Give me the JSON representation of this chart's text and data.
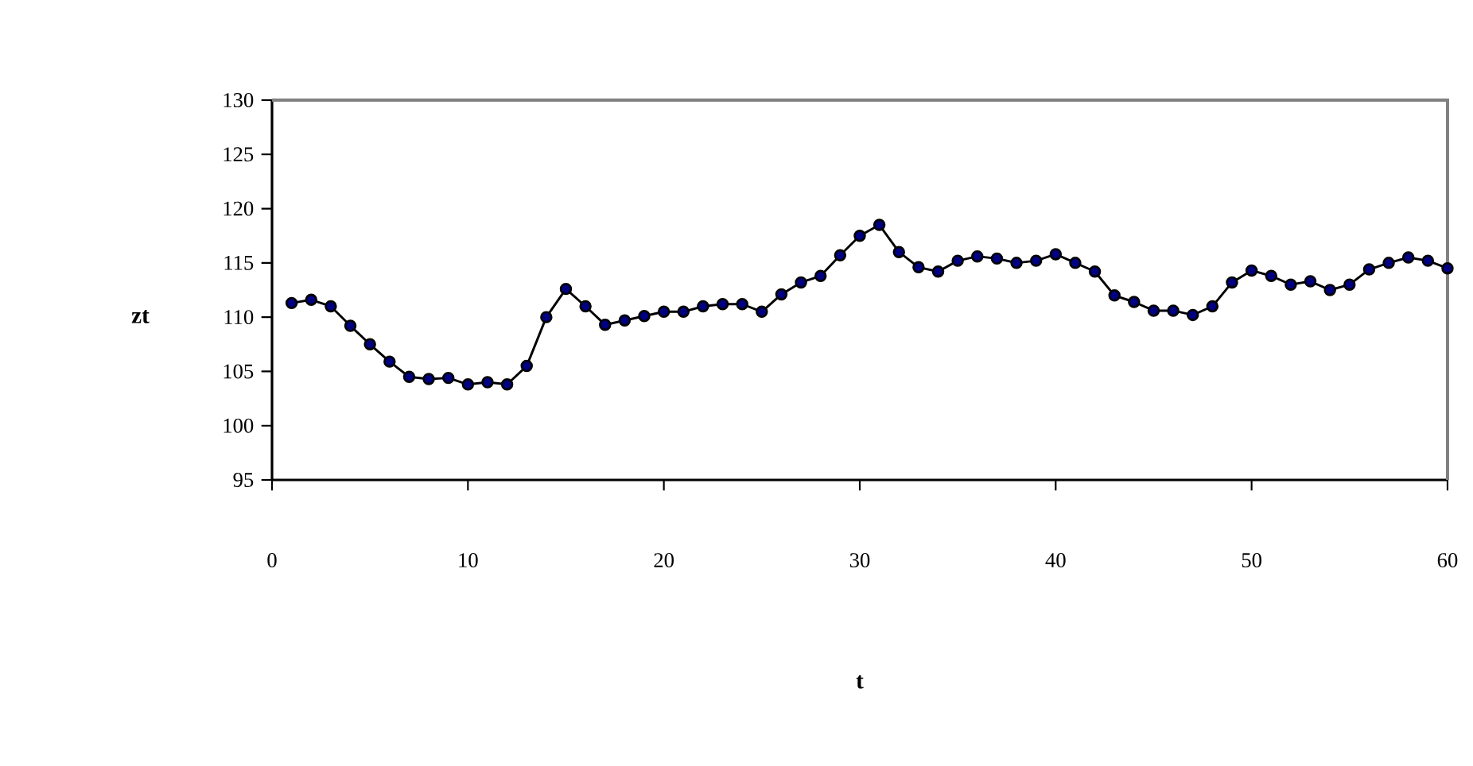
{
  "chart_data": {
    "type": "line",
    "xlabel": "t",
    "ylabel": "zt",
    "x": [
      1,
      2,
      3,
      4,
      5,
      6,
      7,
      8,
      9,
      10,
      11,
      12,
      13,
      14,
      15,
      16,
      17,
      18,
      19,
      20,
      21,
      22,
      23,
      24,
      25,
      26,
      27,
      28,
      29,
      30,
      31,
      32,
      33,
      34,
      35,
      36,
      37,
      38,
      39,
      40,
      41,
      42,
      43,
      44,
      45,
      46,
      47,
      48,
      49,
      50,
      51,
      52,
      53,
      54,
      55,
      56,
      57,
      58,
      59,
      60
    ],
    "series": [
      {
        "color": "#000080",
        "values": [
          111.3,
          111.6,
          111.0,
          109.2,
          107.5,
          105.9,
          104.5,
          104.3,
          104.4,
          103.8,
          104.0,
          103.8,
          105.5,
          110.0,
          112.6,
          111.0,
          109.3,
          109.7,
          110.1,
          110.5,
          110.5,
          111.0,
          111.2,
          111.2,
          110.5,
          112.1,
          113.2,
          113.8,
          115.7,
          117.5,
          118.5,
          116.0,
          114.6,
          114.2,
          115.2,
          115.6,
          115.4,
          115.0,
          115.2,
          115.8,
          115.0,
          114.2,
          112.0,
          111.4,
          110.6,
          110.6,
          110.2,
          111.0,
          113.2,
          114.3,
          113.8,
          113.0,
          113.3,
          112.5,
          113.0,
          114.4,
          115.0,
          115.5,
          115.2,
          114.5
        ]
      }
    ],
    "xlim": [
      0,
      60
    ],
    "xticks": [
      0,
      10,
      20,
      30,
      40,
      50,
      60
    ],
    "ylim": [
      95,
      130
    ],
    "yticks": [
      95,
      100,
      105,
      110,
      115,
      120,
      125,
      130
    ],
    "marker": "circle",
    "line_style": "solid",
    "grid": false
  }
}
